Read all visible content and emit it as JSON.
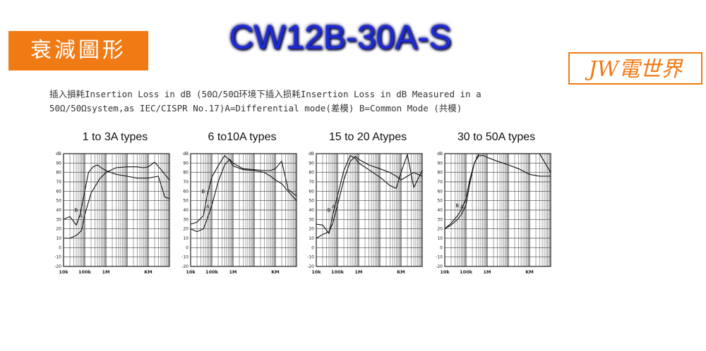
{
  "header": {
    "tag_label": "衰減圖形",
    "model": "CW12B-30A-S",
    "brand": "JW電世界"
  },
  "description": {
    "line1": "插入損耗Insertion Loss in dB (50Ω/50Ω环境下插入损耗Insertion Loss in dB Measured in a",
    "line2": "50Ω/50Ωsystem,as IEC/CISPR No.17)A=Differential mode(差模) B=Common Mode (共模)"
  },
  "chart_data": [
    {
      "type": "line",
      "title": "1 to 3A types",
      "xlabel": "",
      "ylabel": "dB",
      "x_scale": "log",
      "x_tick_labels": [
        "10k",
        "100k",
        "1M",
        "KM"
      ],
      "y_ticks": [
        -20,
        -10,
        0,
        10,
        20,
        30,
        40,
        50,
        60,
        70,
        80,
        90
      ],
      "ylim": [
        -20,
        100
      ],
      "xlim": [
        10000,
        1000000000
      ],
      "grid": true,
      "series": [
        {
          "name": "A",
          "x": [
            10000,
            20000,
            40000,
            70000,
            100000,
            200000,
            500000,
            1000000,
            3000000,
            10000000,
            30000000,
            60000000,
            100000000,
            200000000,
            400000000,
            1000000000
          ],
          "y": [
            10,
            10,
            13,
            18,
            35,
            58,
            73,
            80,
            85,
            86,
            86,
            85,
            86,
            91,
            83,
            72
          ]
        },
        {
          "name": "B",
          "x": [
            10000,
            20000,
            40000,
            60000,
            100000,
            150000,
            250000,
            400000,
            700000,
            1000000,
            3000000,
            10000000,
            30000000,
            100000000,
            300000000,
            600000000,
            1000000000
          ],
          "y": [
            30,
            33,
            24,
            35,
            60,
            80,
            86,
            88,
            84,
            82,
            78,
            76,
            74,
            74,
            76,
            54,
            52
          ]
        }
      ],
      "series_labels": [
        "A",
        "B"
      ]
    },
    {
      "type": "line",
      "title": "6 to10A types",
      "xlabel": "",
      "ylabel": "dB",
      "x_scale": "log",
      "x_tick_labels": [
        "10k",
        "100k",
        "1M",
        "KM"
      ],
      "y_ticks": [
        -20,
        -10,
        0,
        10,
        20,
        30,
        40,
        50,
        60,
        70,
        80,
        90
      ],
      "ylim": [
        -20,
        100
      ],
      "xlim": [
        10000,
        1000000000
      ],
      "grid": true,
      "series": [
        {
          "name": "A",
          "x": [
            10000,
            20000,
            40000,
            60000,
            100000,
            200000,
            400000,
            700000,
            1000000,
            3000000,
            10000000,
            30000000,
            60000000,
            100000000,
            200000000,
            400000000,
            1000000000
          ],
          "y": [
            20,
            17,
            20,
            30,
            45,
            70,
            88,
            94,
            90,
            84,
            83,
            82,
            82,
            84,
            92,
            62,
            55
          ]
        },
        {
          "name": "B",
          "x": [
            10000,
            20000,
            40000,
            60000,
            100000,
            200000,
            400000,
            700000,
            1000000,
            3000000,
            10000000,
            30000000,
            60000000,
            100000000,
            200000000,
            400000000,
            1000000000
          ],
          "y": [
            25,
            27,
            34,
            55,
            75,
            87,
            98,
            93,
            87,
            83,
            82,
            80,
            76,
            72,
            68,
            60,
            50
          ]
        }
      ],
      "series_labels": [
        "A",
        "B"
      ]
    },
    {
      "type": "line",
      "title": "15 to 20 Atypes",
      "xlabel": "",
      "ylabel": "dB",
      "x_scale": "log",
      "x_tick_labels": [
        "10k",
        "100k",
        "1M",
        "KM"
      ],
      "y_ticks": [
        -20,
        -10,
        0,
        10,
        20,
        30,
        40,
        50,
        60,
        70,
        80,
        90
      ],
      "ylim": [
        -20,
        100
      ],
      "xlim": [
        10000,
        1000000000
      ],
      "grid": true,
      "series": [
        {
          "name": "A",
          "x": [
            10000,
            20000,
            40000,
            60000,
            100000,
            200000,
            400000,
            700000,
            1000000,
            3000000,
            10000000,
            30000000,
            60000000,
            100000000,
            200000000,
            400000000,
            1000000000
          ],
          "y": [
            10,
            14,
            17,
            26,
            45,
            72,
            92,
            97,
            94,
            88,
            84,
            80,
            76,
            72,
            76,
            80,
            76
          ]
        },
        {
          "name": "B",
          "x": [
            10000,
            20000,
            40000,
            60000,
            100000,
            200000,
            400000,
            700000,
            1000000,
            3000000,
            10000000,
            30000000,
            60000000,
            100000000,
            200000000,
            400000000,
            1000000000
          ],
          "y": [
            25,
            24,
            15,
            35,
            55,
            82,
            98,
            95,
            90,
            83,
            75,
            66,
            63,
            80,
            99,
            64,
            82
          ]
        }
      ],
      "series_labels": [
        "A",
        "B"
      ]
    },
    {
      "type": "line",
      "title": "30 to 50A types",
      "xlabel": "",
      "ylabel": "dB",
      "x_scale": "log",
      "x_tick_labels": [
        "10k",
        "100k",
        "1M",
        "KM"
      ],
      "y_ticks": [
        -20,
        -10,
        0,
        10,
        20,
        30,
        40,
        50,
        60,
        70,
        80,
        90
      ],
      "ylim": [
        -20,
        100
      ],
      "xlim": [
        10000,
        1000000000
      ],
      "grid": true,
      "series": [
        {
          "name": "A",
          "x": [
            10000,
            20000,
            40000,
            60000,
            100000,
            150000,
            250000,
            400000,
            700000,
            1000000,
            3000000,
            10000000,
            30000000,
            100000000,
            300000000,
            1000000000
          ],
          "y": [
            20,
            24,
            30,
            35,
            45,
            68,
            90,
            100,
            100,
            100,
            100,
            100,
            100,
            100,
            100,
            80
          ]
        },
        {
          "name": "B",
          "x": [
            10000,
            20000,
            40000,
            60000,
            100000,
            150000,
            250000,
            400000,
            700000,
            1000000,
            3000000,
            10000000,
            30000000,
            100000000,
            300000000,
            1000000000
          ],
          "y": [
            20,
            26,
            34,
            40,
            52,
            72,
            90,
            98,
            98,
            96,
            92,
            88,
            84,
            78,
            76,
            76
          ]
        }
      ],
      "series_labels": [
        "A",
        "B"
      ]
    }
  ]
}
